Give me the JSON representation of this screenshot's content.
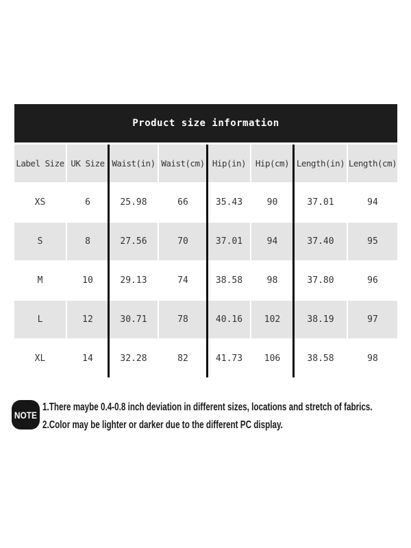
{
  "chart_data": {
    "type": "table",
    "title": "Product size information",
    "columns": [
      "Label Size",
      "UK Size",
      "Waist(in)",
      "Waist(cm)",
      "Hip(in)",
      "Hip(cm)",
      "Length(in)",
      "Length(cm)"
    ],
    "rows": [
      [
        "XS",
        "6",
        "25.98",
        "66",
        "35.43",
        "90",
        "37.01",
        "94"
      ],
      [
        "S",
        "8",
        "27.56",
        "70",
        "37.01",
        "94",
        "37.40",
        "95"
      ],
      [
        "M",
        "10",
        "29.13",
        "74",
        "38.58",
        "98",
        "37.80",
        "96"
      ],
      [
        "L",
        "12",
        "30.71",
        "78",
        "40.16",
        "102",
        "38.19",
        "97"
      ],
      [
        "XL",
        "14",
        "32.28",
        "82",
        "41.73",
        "106",
        "38.58",
        "98"
      ]
    ],
    "layout_hints": {
      "column_groups": [
        [
          "Label Size",
          "UK Size"
        ],
        [
          "Waist(in)",
          "Waist(cm)"
        ],
        [
          "Hip(in)",
          "Hip(cm)"
        ],
        [
          "Length(in)",
          "Length(cm)"
        ]
      ],
      "alternating_row_shading": true
    }
  },
  "note": {
    "badge_label": "NOTE",
    "lines": [
      "1.There maybe 0.4-0.8 inch deviation in different sizes, locations and stretch of fabrics.",
      "2.Color may be lighter or darker due to the different PC display."
    ]
  },
  "colors": {
    "banner_bg": "#1d1d1d",
    "banner_text": "#ffffff",
    "row_alt_bg": "#e4e4e4",
    "row_bg": "#ffffff",
    "divider": "#0a0a0a",
    "table_text": "#333333",
    "note_badge_bg": "#161616",
    "note_text": "#1a1a1a"
  }
}
